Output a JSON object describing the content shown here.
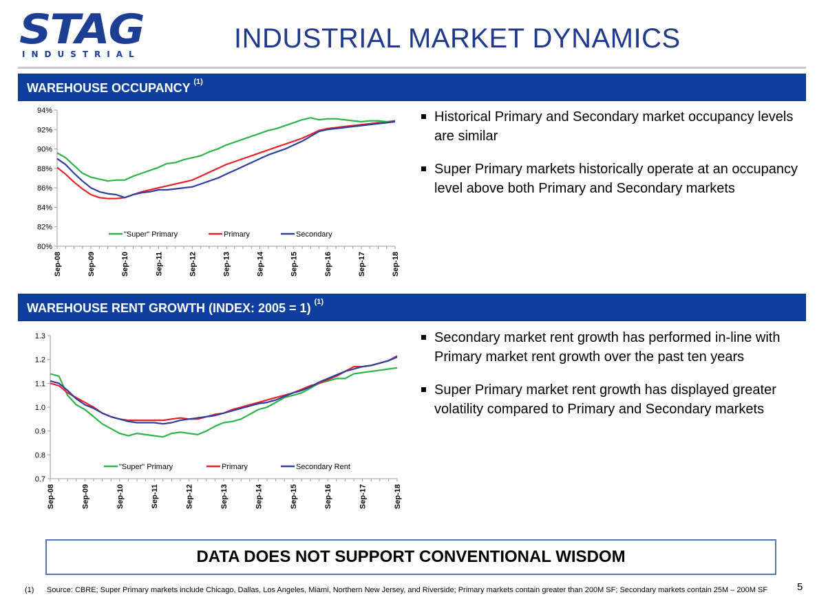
{
  "logo": {
    "word": "STAG",
    "sub": "INDUSTRIAL"
  },
  "title": "INDUSTRIAL MARKET DYNAMICS",
  "sections": [
    {
      "heading": "WAREHOUSE OCCUPANCY",
      "note": "(1)"
    },
    {
      "heading": "WAREHOUSE RENT GROWTH (INDEX: 2005 = 1)",
      "note": "(1)"
    }
  ],
  "bullets_top": [
    "Historical Primary and Secondary market occupancy levels are similar",
    "Super Primary markets historically operate at an occupancy level above both Primary and Secondary markets"
  ],
  "bullets_bottom": [
    "Secondary market rent growth has performed in-line with Primary market rent growth over the past ten years",
    "Super Primary market rent growth has displayed greater volatility compared to Primary and Secondary markets"
  ],
  "callout": "DATA DOES NOT SUPPORT CONVENTIONAL WISDOM",
  "footnote": {
    "num": "(1)",
    "text": "Source: CBRE; Super Primary markets include Chicago, Dallas, Los Angeles, Miami, Northern New Jersey, and Riverside; Primary markets contain greater than 200M SF; Secondary markets contain 25M – 200M SF"
  },
  "page_number": "5",
  "colors": {
    "band": "#0e3e9e",
    "super": "#2db34a",
    "primary": "#e8202a",
    "secondary": "#2a3f9e"
  },
  "chart_data": [
    {
      "type": "line",
      "x": [
        "Sep-08",
        "Dec-08",
        "Mar-09",
        "Jun-09",
        "Sep-09",
        "Dec-09",
        "Mar-10",
        "Jun-10",
        "Sep-10",
        "Dec-10",
        "Mar-11",
        "Jun-11",
        "Sep-11",
        "Dec-11",
        "Mar-12",
        "Jun-12",
        "Sep-12",
        "Dec-12",
        "Mar-13",
        "Jun-13",
        "Sep-13",
        "Dec-13",
        "Mar-14",
        "Jun-14",
        "Sep-14",
        "Dec-14",
        "Mar-15",
        "Jun-15",
        "Sep-15",
        "Dec-15",
        "Mar-16",
        "Jun-16",
        "Sep-16",
        "Dec-16",
        "Mar-17",
        "Jun-17",
        "Sep-17",
        "Dec-17",
        "Mar-18",
        "Jun-18",
        "Sep-18"
      ],
      "tick_labels": [
        "Sep-08",
        "Sep-09",
        "Sep-10",
        "Sep-11",
        "Sep-12",
        "Sep-13",
        "Sep-14",
        "Sep-15",
        "Sep-16",
        "Sep-17",
        "Sep-18"
      ],
      "y_ticks": [
        "94%",
        "92%",
        "90%",
        "88%",
        "86%",
        "84%",
        "82%",
        "80%"
      ],
      "ylim": [
        80,
        94
      ],
      "legend_position": "bottom-left",
      "series": [
        {
          "name": "\"Super\" Primary",
          "color": "#2db34a",
          "values": [
            89.6,
            89.1,
            88.3,
            87.5,
            87.1,
            86.9,
            86.7,
            86.8,
            86.8,
            87.2,
            87.5,
            87.8,
            88.1,
            88.5,
            88.6,
            88.9,
            89.1,
            89.3,
            89.7,
            90.0,
            90.4,
            90.7,
            91.0,
            91.3,
            91.6,
            91.9,
            92.1,
            92.4,
            92.7,
            93.0,
            93.2,
            93.0,
            93.1,
            93.1,
            93.0,
            92.9,
            92.8,
            92.9,
            92.9,
            92.8,
            92.9
          ]
        },
        {
          "name": "Primary",
          "color": "#e8202a",
          "values": [
            88.1,
            87.4,
            86.6,
            85.9,
            85.3,
            85.0,
            84.9,
            84.9,
            85.0,
            85.3,
            85.6,
            85.8,
            86.0,
            86.2,
            86.4,
            86.6,
            86.8,
            87.2,
            87.6,
            88.0,
            88.4,
            88.7,
            89.0,
            89.3,
            89.6,
            89.9,
            90.2,
            90.5,
            90.8,
            91.1,
            91.5,
            91.9,
            92.1,
            92.2,
            92.3,
            92.4,
            92.5,
            92.6,
            92.7,
            92.7,
            92.9
          ]
        },
        {
          "name": "Secondary",
          "color": "#2a3f9e",
          "values": [
            89.0,
            88.4,
            87.5,
            86.7,
            86.0,
            85.6,
            85.4,
            85.3,
            85.0,
            85.3,
            85.5,
            85.6,
            85.8,
            85.8,
            85.9,
            86.0,
            86.1,
            86.4,
            86.7,
            87.0,
            87.4,
            87.8,
            88.2,
            88.6,
            89.0,
            89.4,
            89.7,
            90.0,
            90.4,
            90.8,
            91.3,
            91.8,
            92.0,
            92.1,
            92.2,
            92.3,
            92.4,
            92.5,
            92.6,
            92.7,
            92.8
          ]
        }
      ]
    },
    {
      "type": "line",
      "x": [
        "Sep-08",
        "Dec-08",
        "Mar-09",
        "Jun-09",
        "Sep-09",
        "Dec-09",
        "Mar-10",
        "Jun-10",
        "Sep-10",
        "Dec-10",
        "Mar-11",
        "Jun-11",
        "Sep-11",
        "Dec-11",
        "Mar-12",
        "Jun-12",
        "Sep-12",
        "Dec-12",
        "Mar-13",
        "Jun-13",
        "Sep-13",
        "Dec-13",
        "Mar-14",
        "Jun-14",
        "Sep-14",
        "Dec-14",
        "Mar-15",
        "Jun-15",
        "Sep-15",
        "Dec-15",
        "Mar-16",
        "Jun-16",
        "Sep-16",
        "Dec-16",
        "Mar-17",
        "Jun-17",
        "Sep-17",
        "Dec-17",
        "Mar-18",
        "Jun-18",
        "Sep-18"
      ],
      "tick_labels": [
        "Sep-08",
        "Sep-09",
        "Sep-10",
        "Sep-11",
        "Sep-12",
        "Sep-13",
        "Sep-14",
        "Sep-15",
        "Sep-16",
        "Sep-17",
        "Sep-18"
      ],
      "y_ticks": [
        "1.3",
        "1.2",
        "1.1",
        "1.0",
        "0.9",
        "0.8",
        "0.7"
      ],
      "ylim": [
        0.7,
        1.3
      ],
      "legend_position": "bottom-left",
      "series": [
        {
          "name": "\"Super\" Primary",
          "color": "#2db34a",
          "values": [
            1.14,
            1.13,
            1.05,
            1.01,
            0.99,
            0.96,
            0.93,
            0.91,
            0.89,
            0.88,
            0.89,
            0.885,
            0.88,
            0.875,
            0.89,
            0.895,
            0.89,
            0.885,
            0.9,
            0.92,
            0.935,
            0.94,
            0.95,
            0.97,
            0.99,
            1.0,
            1.02,
            1.04,
            1.05,
            1.06,
            1.08,
            1.1,
            1.11,
            1.12,
            1.12,
            1.14,
            1.145,
            1.15,
            1.155,
            1.16,
            1.165
          ]
        },
        {
          "name": "Primary",
          "color": "#e8202a",
          "values": [
            1.1,
            1.09,
            1.06,
            1.04,
            1.02,
            1.0,
            0.975,
            0.96,
            0.95,
            0.945,
            0.945,
            0.945,
            0.945,
            0.945,
            0.95,
            0.955,
            0.95,
            0.95,
            0.96,
            0.97,
            0.975,
            0.99,
            1.0,
            1.01,
            1.02,
            1.03,
            1.04,
            1.05,
            1.06,
            1.075,
            1.09,
            1.1,
            1.115,
            1.13,
            1.15,
            1.17,
            1.17,
            1.175,
            1.185,
            1.195,
            1.215
          ]
        },
        {
          "name": "Secondary Rent",
          "color": "#2a3f9e",
          "values": [
            1.11,
            1.1,
            1.07,
            1.035,
            1.01,
            0.995,
            0.975,
            0.96,
            0.95,
            0.94,
            0.935,
            0.935,
            0.935,
            0.93,
            0.935,
            0.945,
            0.95,
            0.955,
            0.96,
            0.965,
            0.975,
            0.985,
            0.995,
            1.005,
            1.015,
            1.02,
            1.03,
            1.045,
            1.06,
            1.07,
            1.085,
            1.105,
            1.12,
            1.135,
            1.15,
            1.16,
            1.17,
            1.175,
            1.185,
            1.195,
            1.21
          ]
        }
      ]
    }
  ]
}
